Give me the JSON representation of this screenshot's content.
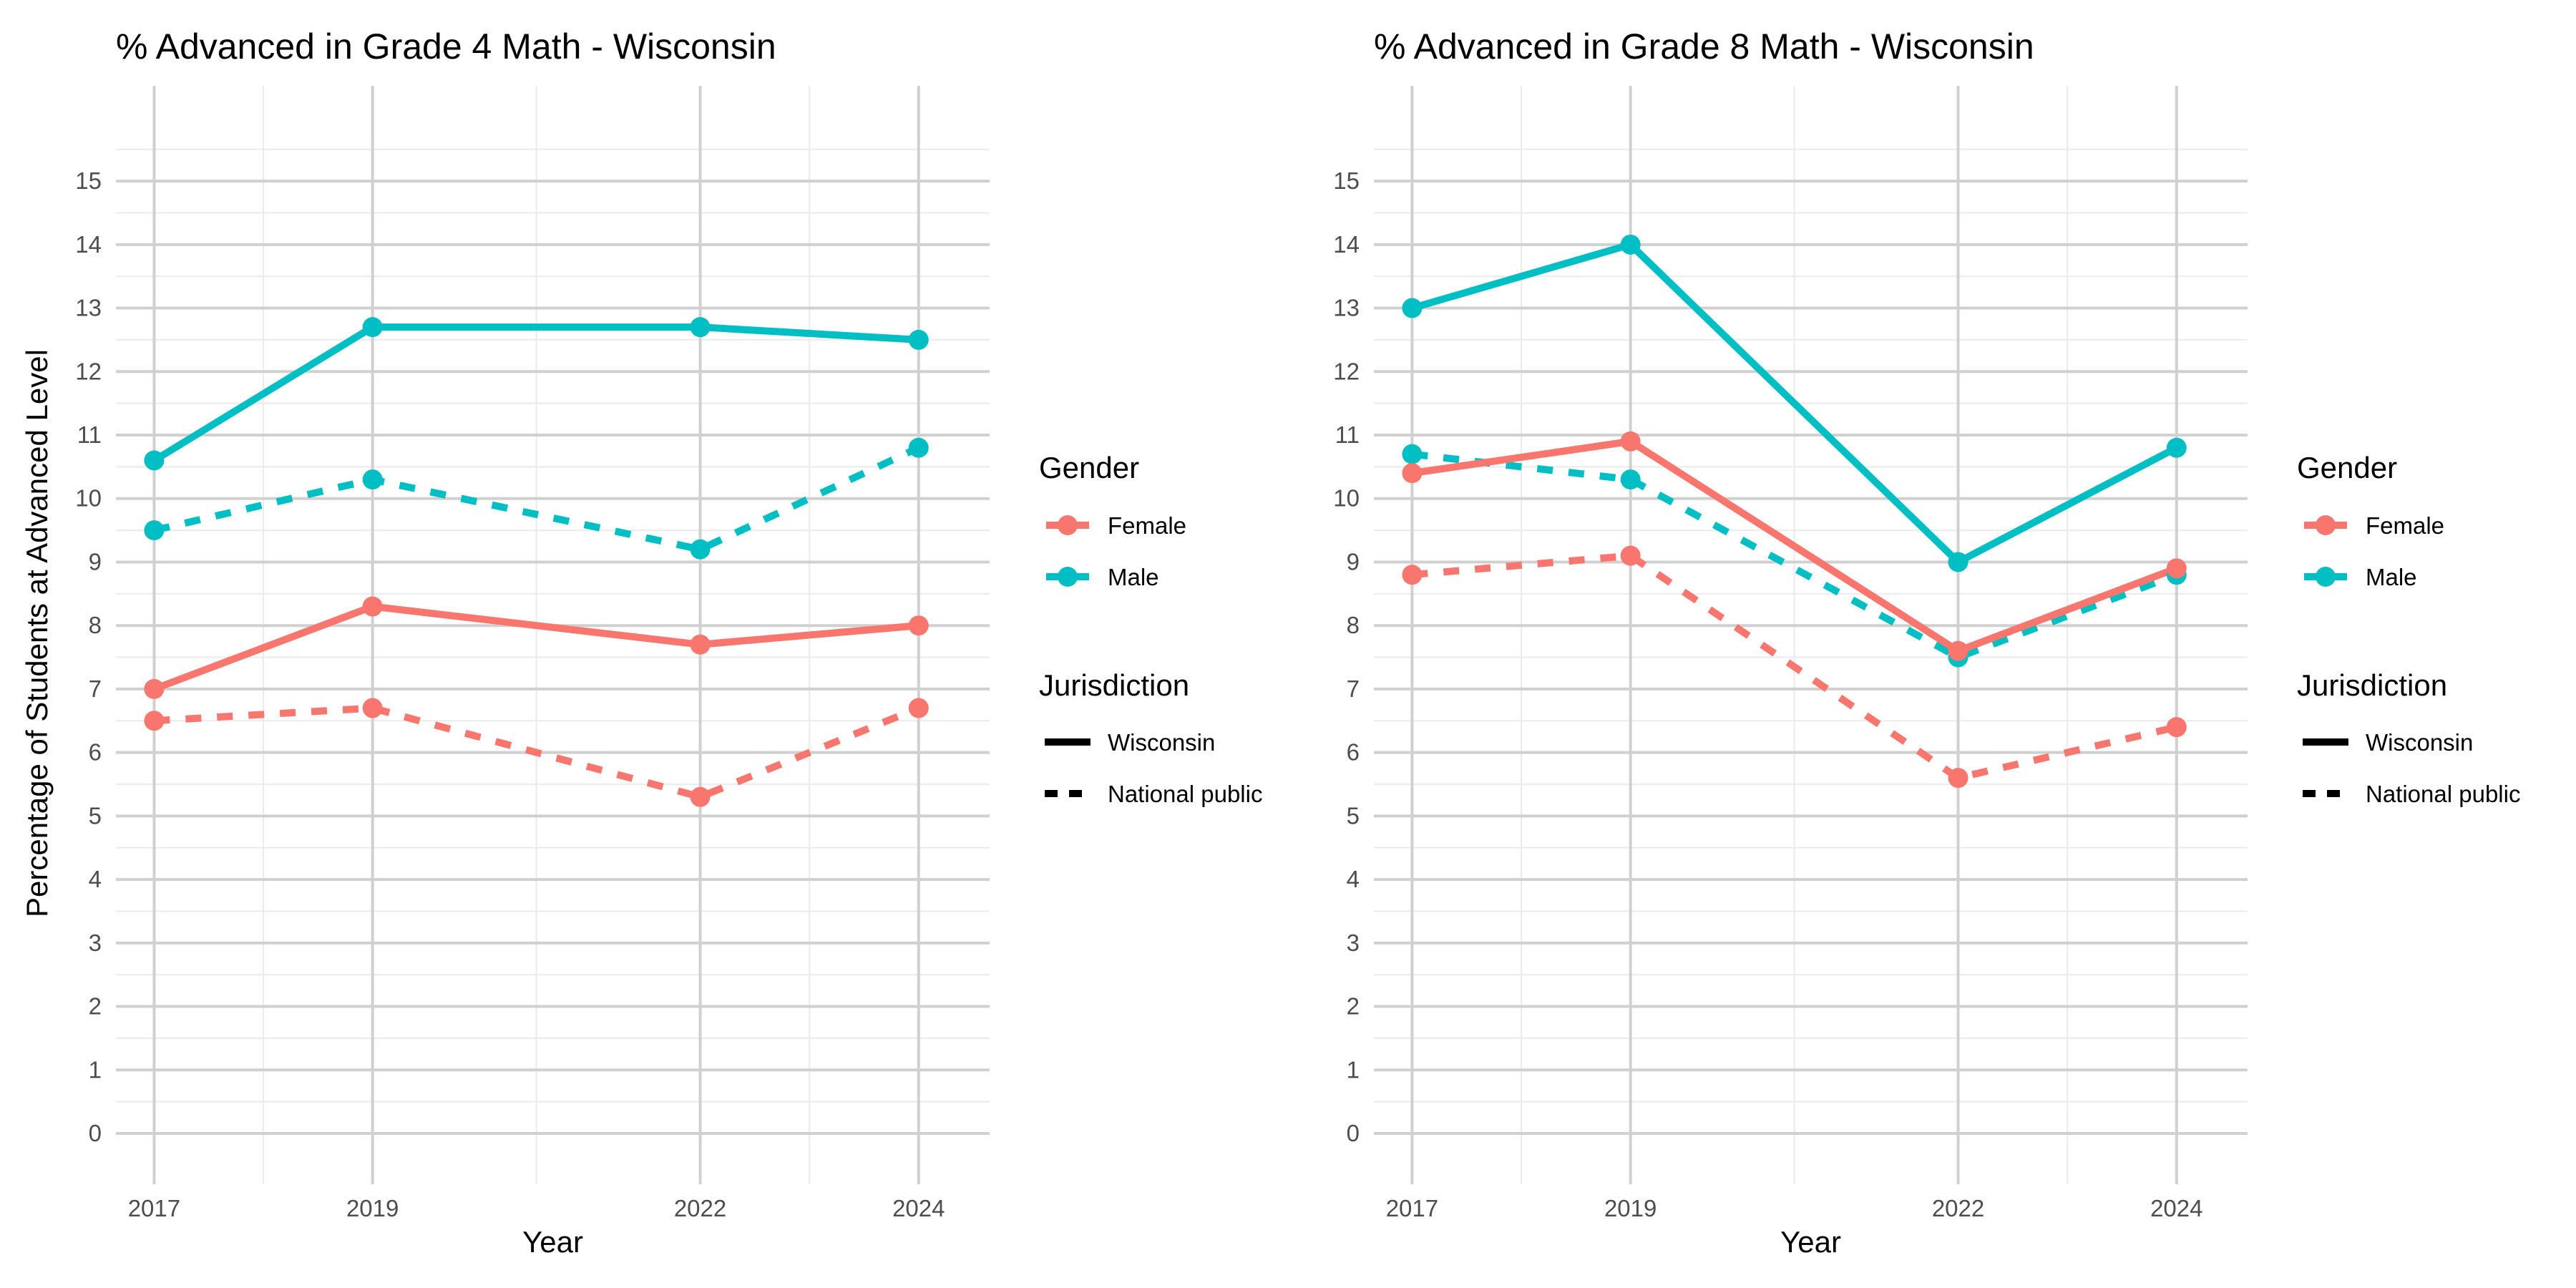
{
  "ylabel": "Percentage of Students at Advanced Level",
  "legend": {
    "gender_title": "Gender",
    "gender_items": [
      {
        "label": "Female",
        "color": "#F8766D"
      },
      {
        "label": "Male",
        "color": "#00BFC4"
      }
    ],
    "jurisdiction_title": "Jurisdiction",
    "jurisdiction_items": [
      {
        "label": "Wisconsin",
        "linetype": "solid"
      },
      {
        "label": "National public",
        "linetype": "dashed"
      }
    ]
  },
  "chart_data": [
    {
      "type": "line",
      "title": "% Advanced in Grade 4 Math - Wisconsin",
      "xlabel": "Year",
      "ylabel": "Percentage of Students at Advanced Level",
      "x": [
        2017,
        2019,
        2022,
        2024
      ],
      "ylim": [
        -0.8,
        16.5
      ],
      "yticks": [
        0,
        1,
        2,
        3,
        4,
        5,
        6,
        7,
        8,
        9,
        10,
        11,
        12,
        13,
        14,
        15
      ],
      "grid": true,
      "legend_position": "right",
      "series": [
        {
          "name": "Female",
          "jurisdiction": "Wisconsin",
          "color": "#F8766D",
          "linetype": "solid",
          "values": [
            7.0,
            8.3,
            7.7,
            8.0
          ]
        },
        {
          "name": "Female",
          "jurisdiction": "National public",
          "color": "#F8766D",
          "linetype": "dashed",
          "values": [
            6.5,
            6.7,
            5.3,
            6.7
          ]
        },
        {
          "name": "Male",
          "jurisdiction": "Wisconsin",
          "color": "#00BFC4",
          "linetype": "solid",
          "values": [
            10.6,
            12.7,
            12.7,
            12.5
          ]
        },
        {
          "name": "Male",
          "jurisdiction": "National public",
          "color": "#00BFC4",
          "linetype": "dashed",
          "values": [
            9.5,
            10.3,
            9.2,
            10.8
          ]
        }
      ]
    },
    {
      "type": "line",
      "title": "% Advanced in Grade 8 Math - Wisconsin",
      "xlabel": "Year",
      "ylabel": "",
      "x": [
        2017,
        2019,
        2022,
        2024
      ],
      "ylim": [
        -0.8,
        16.5
      ],
      "yticks": [
        0,
        1,
        2,
        3,
        4,
        5,
        6,
        7,
        8,
        9,
        10,
        11,
        12,
        13,
        14,
        15
      ],
      "grid": true,
      "legend_position": "right",
      "series": [
        {
          "name": "Female",
          "jurisdiction": "Wisconsin",
          "color": "#F8766D",
          "linetype": "solid",
          "values": [
            10.4,
            10.9,
            7.6,
            8.9
          ]
        },
        {
          "name": "Female",
          "jurisdiction": "National public",
          "color": "#F8766D",
          "linetype": "dashed",
          "values": [
            8.8,
            9.1,
            5.6,
            6.4
          ]
        },
        {
          "name": "Male",
          "jurisdiction": "Wisconsin",
          "color": "#00BFC4",
          "linetype": "solid",
          "values": [
            13.0,
            14.0,
            9.0,
            10.8
          ]
        },
        {
          "name": "Male",
          "jurisdiction": "National public",
          "color": "#00BFC4",
          "linetype": "dashed",
          "values": [
            10.7,
            10.3,
            7.5,
            8.8
          ]
        }
      ]
    }
  ]
}
